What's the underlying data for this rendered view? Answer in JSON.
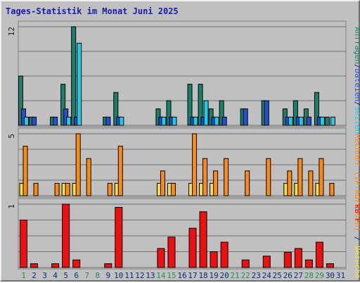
{
  "title": "Tages-Statistik im Monat Juni 2025",
  "colors": {
    "background": "#c0c0c0",
    "panel_border": "#808080",
    "grid": "#707070",
    "anfragen": "#19806a",
    "dateien": "#1f52d6",
    "seiten": "#1ecbe8",
    "besuche": "#f0e040",
    "rechner": "#ff8a10",
    "kbf": "#ee1010",
    "weekend_label": "#2a8a5a",
    "weekday_label": "#0a2a7a"
  },
  "chart_data": [
    {
      "type": "bar",
      "panel": "top",
      "ymax_label": "12",
      "ylim": [
        0,
        12
      ],
      "legend": [
        {
          "text": "Anfragen",
          "color_key": "anfragen"
        },
        {
          "text": "/",
          "color_key": "weekday_label"
        },
        {
          "text": "Dateien",
          "color_key": "dateien"
        },
        {
          "text": "/",
          "color_key": "weekday_label"
        },
        {
          "text": "Seiten",
          "color_key": "seiten"
        }
      ],
      "categories": [
        "1",
        "2",
        "3",
        "4",
        "5",
        "6",
        "7",
        "8",
        "9",
        "10",
        "11",
        "12",
        "13",
        "14",
        "15",
        "16",
        "17",
        "18",
        "19",
        "20",
        "21",
        "22",
        "23",
        "24",
        "25",
        "26",
        "27",
        "28",
        "29",
        "30",
        "31"
      ],
      "series": [
        {
          "name": "Anfragen",
          "color_key": "anfragen",
          "values": [
            6,
            1,
            0,
            1,
            5,
            12,
            0,
            0,
            1,
            4,
            0,
            0,
            0,
            2,
            3,
            0,
            5,
            5,
            2,
            3,
            0,
            2,
            0,
            3,
            0,
            2,
            3,
            2,
            4,
            1,
            0
          ]
        },
        {
          "name": "Dateien",
          "color_key": "dateien",
          "values": [
            2,
            1,
            0,
            1,
            2,
            1,
            0,
            0,
            1,
            1,
            0,
            0,
            0,
            1,
            1,
            0,
            1,
            1,
            1,
            1,
            0,
            2,
            0,
            3,
            0,
            1,
            1,
            1,
            1,
            0,
            0
          ]
        },
        {
          "name": "Seiten",
          "color_key": "seiten",
          "values": [
            1,
            0,
            0,
            0,
            1,
            10,
            0,
            0,
            0,
            1,
            0,
            0,
            0,
            1,
            1,
            0,
            1,
            3,
            1,
            0,
            0,
            0,
            0,
            0,
            0,
            1,
            1,
            0,
            1,
            1,
            0
          ]
        }
      ]
    },
    {
      "type": "bar",
      "panel": "middle",
      "ymax_label": "5",
      "ylim": [
        0,
        5
      ],
      "legend": [
        {
          "text": "Rechner",
          "color_key": "rechner"
        },
        {
          "text": " (",
          "color_key": "rechner"
        },
        {
          "text": "IP-Adressen",
          "color_key": "rechner"
        },
        {
          "text": ")",
          "color_key": "rechner"
        },
        {
          "text": " / ",
          "color_key": "weekday_label"
        },
        {
          "text": "Besuche",
          "color_key": "besuche"
        }
      ],
      "categories": [
        "1",
        "2",
        "3",
        "4",
        "5",
        "6",
        "7",
        "8",
        "9",
        "10",
        "11",
        "12",
        "13",
        "14",
        "15",
        "16",
        "17",
        "18",
        "19",
        "20",
        "21",
        "22",
        "23",
        "24",
        "25",
        "26",
        "27",
        "28",
        "29",
        "30",
        "31"
      ],
      "series": [
        {
          "name": "Besuche",
          "color_key": "besuche",
          "values": [
            1,
            0,
            0,
            0,
            1,
            1,
            0,
            0,
            0,
            1,
            0,
            0,
            0,
            1,
            1,
            0,
            1,
            1,
            1,
            0,
            0,
            0,
            0,
            0,
            0,
            1,
            1,
            0,
            1,
            0,
            0
          ]
        },
        {
          "name": "Rechner (IP-Adressen)",
          "color_key": "rechner",
          "values": [
            4,
            1,
            0,
            1,
            1,
            5,
            3,
            0,
            1,
            4,
            0,
            0,
            0,
            2,
            1,
            0,
            5,
            3,
            2,
            3,
            0,
            2,
            0,
            3,
            0,
            2,
            3,
            2,
            3,
            1,
            0
          ]
        }
      ]
    },
    {
      "type": "bar",
      "panel": "bottom",
      "ymax_label": "1",
      "ylim": [
        0,
        1
      ],
      "legend": [
        {
          "text": "kB F",
          "color_key": "kbf"
        }
      ],
      "categories": [
        "1",
        "2",
        "3",
        "4",
        "5",
        "6",
        "7",
        "8",
        "9",
        "10",
        "11",
        "12",
        "13",
        "14",
        "15",
        "16",
        "17",
        "18",
        "19",
        "20",
        "21",
        "22",
        "23",
        "24",
        "25",
        "26",
        "27",
        "28",
        "29",
        "30",
        "31"
      ],
      "series": [
        {
          "name": "kB F",
          "color_key": "kbf",
          "values": [
            0.75,
            0.06,
            0,
            0.06,
            1.0,
            0.12,
            0,
            0,
            0.06,
            0.95,
            0,
            0,
            0,
            0.3,
            0.48,
            0,
            0.62,
            0.88,
            0.25,
            0.4,
            0,
            0.12,
            0,
            0.18,
            0,
            0.24,
            0.3,
            0.12,
            0.4,
            0.06,
            0
          ]
        }
      ]
    }
  ],
  "x_axis": {
    "labels": [
      "1",
      "2",
      "3",
      "4",
      "5",
      "6",
      "7",
      "8",
      "9",
      "10",
      "11",
      "12",
      "13",
      "14",
      "15",
      "16",
      "17",
      "18",
      "19",
      "20",
      "21",
      "22",
      "23",
      "24",
      "25",
      "26",
      "27",
      "28",
      "29",
      "30",
      "31"
    ],
    "weekend_days": [
      1,
      7,
      8,
      14,
      15,
      21,
      22,
      28,
      29
    ]
  }
}
